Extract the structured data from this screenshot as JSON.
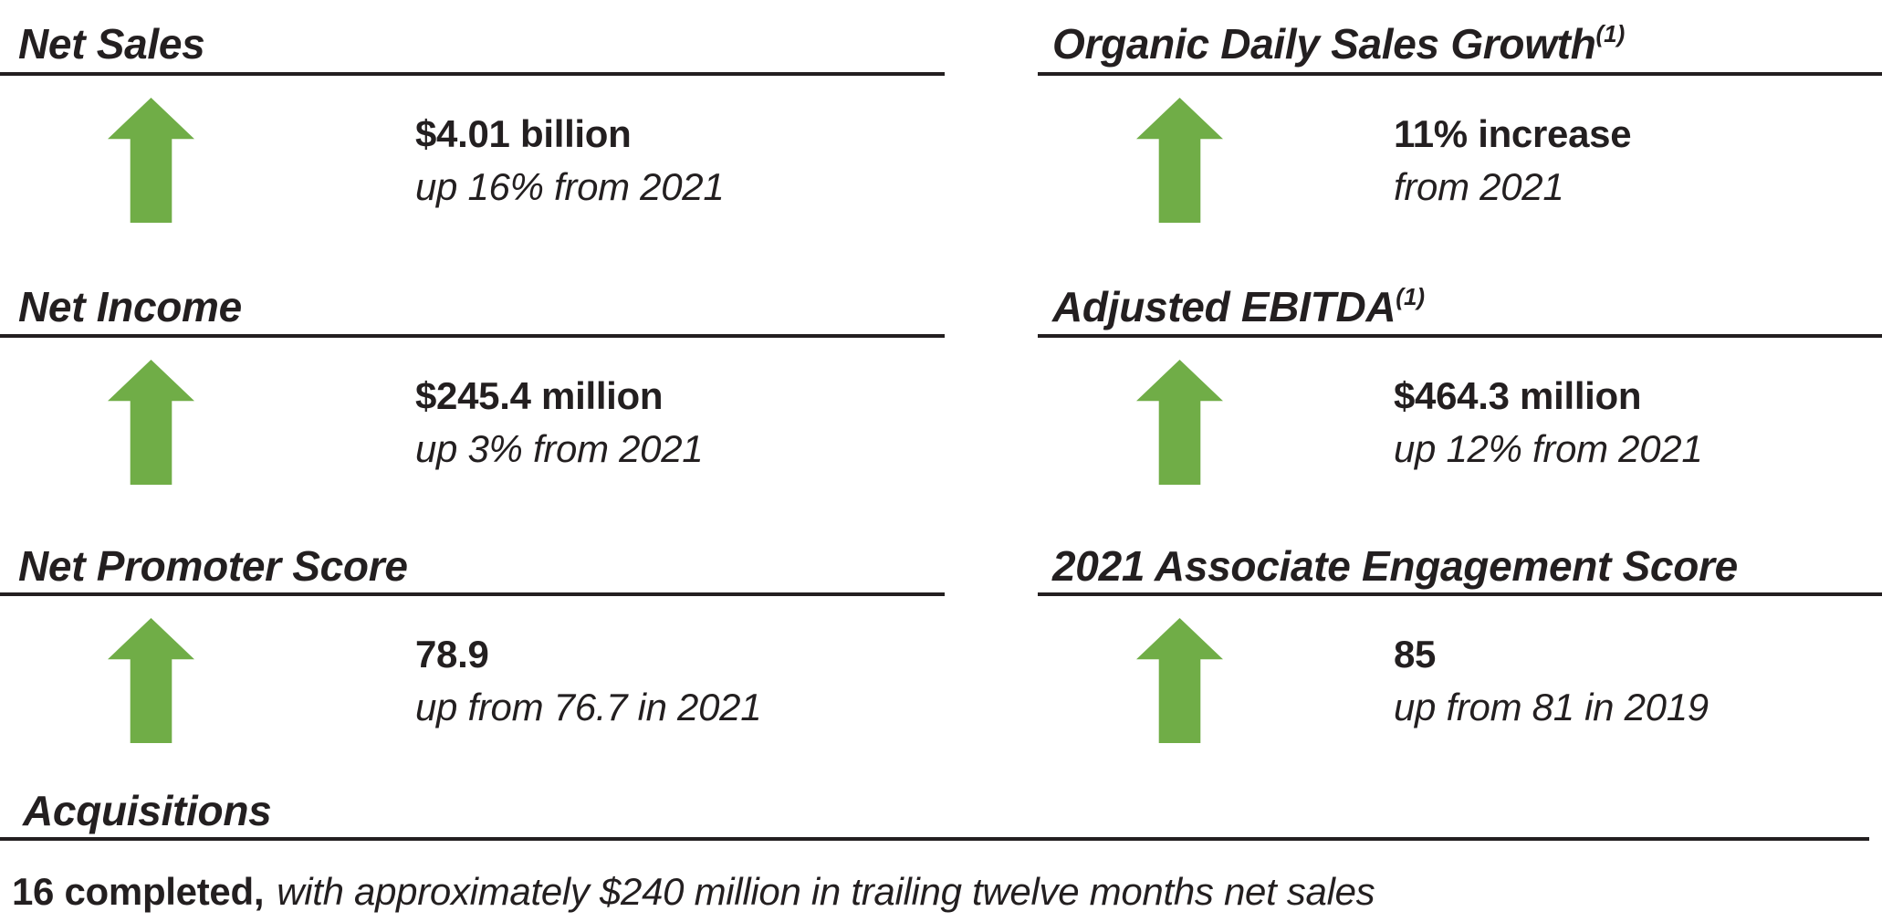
{
  "colors": {
    "accent_green": "#70ad47",
    "text": "#231f20"
  },
  "metrics": [
    {
      "id": "net-sales",
      "title": "Net Sales",
      "superscript": "",
      "value": "$4.01 billion",
      "change": "up 16% from 2021"
    },
    {
      "id": "organic-daily-sales-growth",
      "title": "Organic Daily Sales Growth",
      "superscript": "(1)",
      "value": "11% increase",
      "change": "from 2021"
    },
    {
      "id": "net-income",
      "title": "Net Income",
      "superscript": "",
      "value": "$245.4 million",
      "change": "up 3% from 2021"
    },
    {
      "id": "adjusted-ebitda",
      "title": "Adjusted EBITDA",
      "superscript": "(1)",
      "value": "$464.3 million",
      "change": "up 12% from 2021"
    },
    {
      "id": "net-promoter-score",
      "title": "Net Promoter Score",
      "superscript": "",
      "value": "78.9",
      "change": "up from 76.7 in 2021"
    },
    {
      "id": "associate-engagement-score",
      "title": "2021 Associate Engagement Score",
      "superscript": "",
      "value": "85",
      "change": "up from 81 in 2019"
    }
  ],
  "acquisitions": {
    "title": "Acquisitions",
    "lead": "16 completed,",
    "detail": "with approximately $240 million in trailing twelve months net sales"
  }
}
